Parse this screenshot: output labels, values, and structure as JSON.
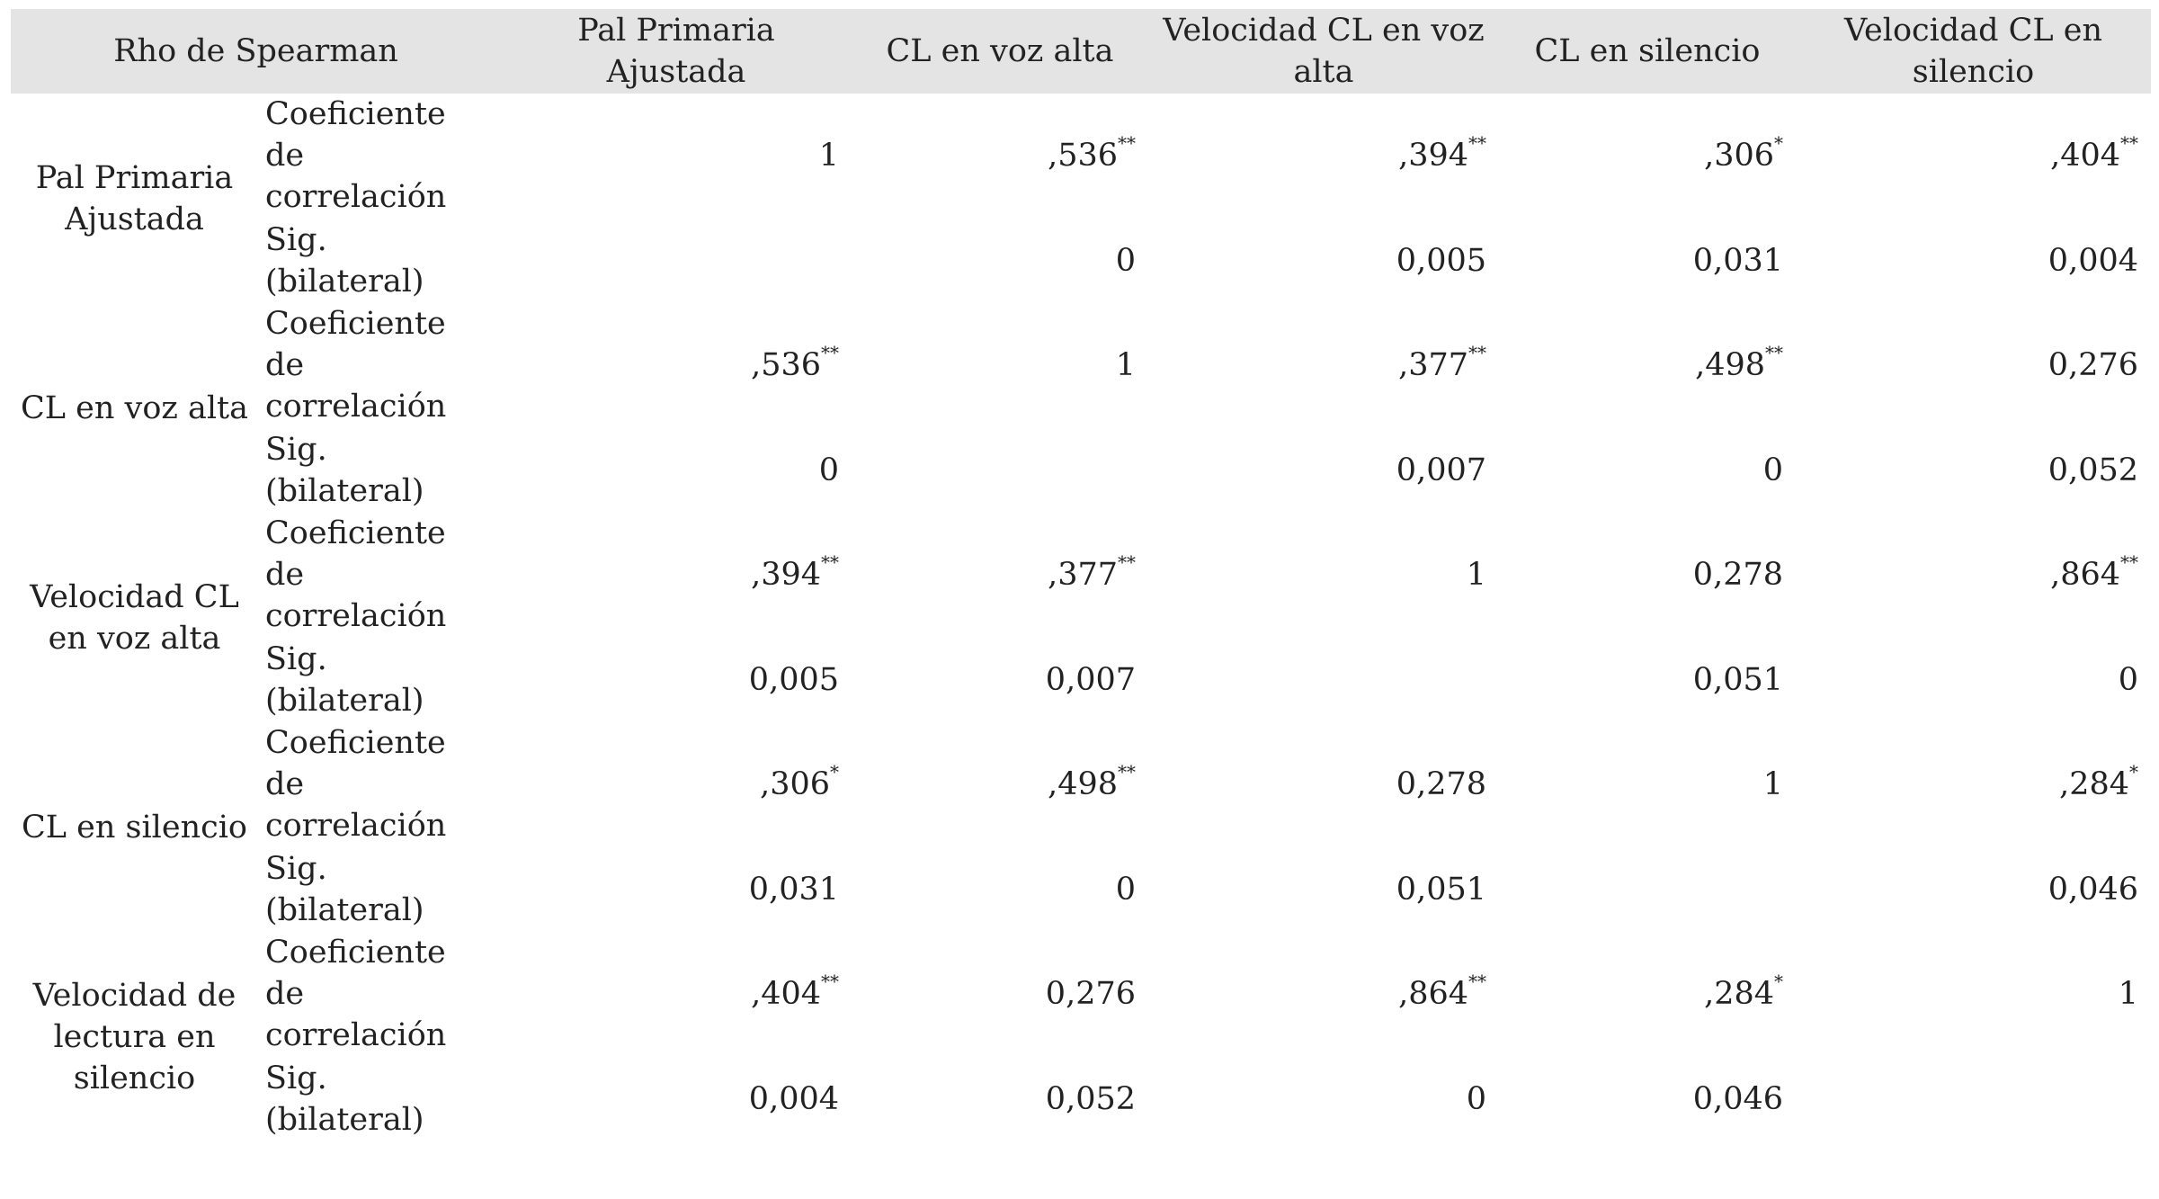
{
  "header": {
    "corner": "Rho de Spearman",
    "columns": [
      "Pal Primaria Ajustada",
      "CL en voz alta",
      "Velocidad CL en voz alta",
      "CL en silencio",
      "Velocidad CL en silencio"
    ]
  },
  "rows": [
    {
      "variable": "Pal Primaria Ajustada",
      "stats": [
        {
          "label": "Coeficiente de correlación",
          "cells": [
            {
              "text": "1"
            },
            {
              "text": ",536",
              "mark": "**"
            },
            {
              "text": ",394",
              "mark": "**"
            },
            {
              "text": ",306",
              "mark": "*"
            },
            {
              "text": ",404",
              "mark": "**"
            }
          ]
        },
        {
          "label": "Sig. (bilateral)",
          "cells": [
            null,
            {
              "text": "0"
            },
            {
              "text": "0,005"
            },
            {
              "text": "0,031"
            },
            {
              "text": "0,004"
            }
          ]
        }
      ]
    },
    {
      "variable": "CL en voz alta",
      "stats": [
        {
          "label": "Coeficiente de correlación",
          "cells": [
            {
              "text": ",536",
              "mark": "**"
            },
            {
              "text": "1"
            },
            {
              "text": ",377",
              "mark": "**"
            },
            {
              "text": ",498",
              "mark": "**"
            },
            {
              "text": "0,276"
            }
          ]
        },
        {
          "label": "Sig. (bilateral)",
          "cells": [
            {
              "text": "0"
            },
            null,
            {
              "text": "0,007"
            },
            {
              "text": "0"
            },
            {
              "text": "0,052"
            }
          ]
        }
      ]
    },
    {
      "variable": "Velocidad CL en voz alta",
      "stats": [
        {
          "label": "Coeficiente de correlación",
          "cells": [
            {
              "text": ",394",
              "mark": "**"
            },
            {
              "text": ",377",
              "mark": "**"
            },
            {
              "text": "1"
            },
            {
              "text": "0,278"
            },
            {
              "text": ",864",
              "mark": "**"
            }
          ]
        },
        {
          "label": "Sig. (bilateral)",
          "cells": [
            {
              "text": "0,005"
            },
            {
              "text": "0,007"
            },
            null,
            {
              "text": "0,051"
            },
            {
              "text": "0"
            }
          ]
        }
      ]
    },
    {
      "variable": "CL en silencio",
      "stats": [
        {
          "label": "Coeficiente de correlación",
          "cells": [
            {
              "text": ",306",
              "mark": "*"
            },
            {
              "text": ",498",
              "mark": "**"
            },
            {
              "text": "0,278"
            },
            {
              "text": "1"
            },
            {
              "text": ",284",
              "mark": "*"
            }
          ]
        },
        {
          "label": "Sig. (bilateral)",
          "cells": [
            {
              "text": "0,031"
            },
            {
              "text": "0"
            },
            {
              "text": "0,051"
            },
            null,
            {
              "text": "0,046"
            }
          ]
        }
      ]
    },
    {
      "variable": "Velocidad de lectura en silencio",
      "stats": [
        {
          "label": "Coeficiente de correlación",
          "cells": [
            {
              "text": ",404",
              "mark": "**"
            },
            {
              "text": "0,276"
            },
            {
              "text": ",864",
              "mark": "**"
            },
            {
              "text": ",284",
              "mark": "*"
            },
            {
              "text": "1"
            }
          ]
        },
        {
          "label": "Sig. (bilateral)",
          "cells": [
            {
              "text": "0,004"
            },
            {
              "text": "0,052"
            },
            {
              "text": "0"
            },
            {
              "text": "0,046"
            },
            null
          ]
        }
      ]
    }
  ]
}
